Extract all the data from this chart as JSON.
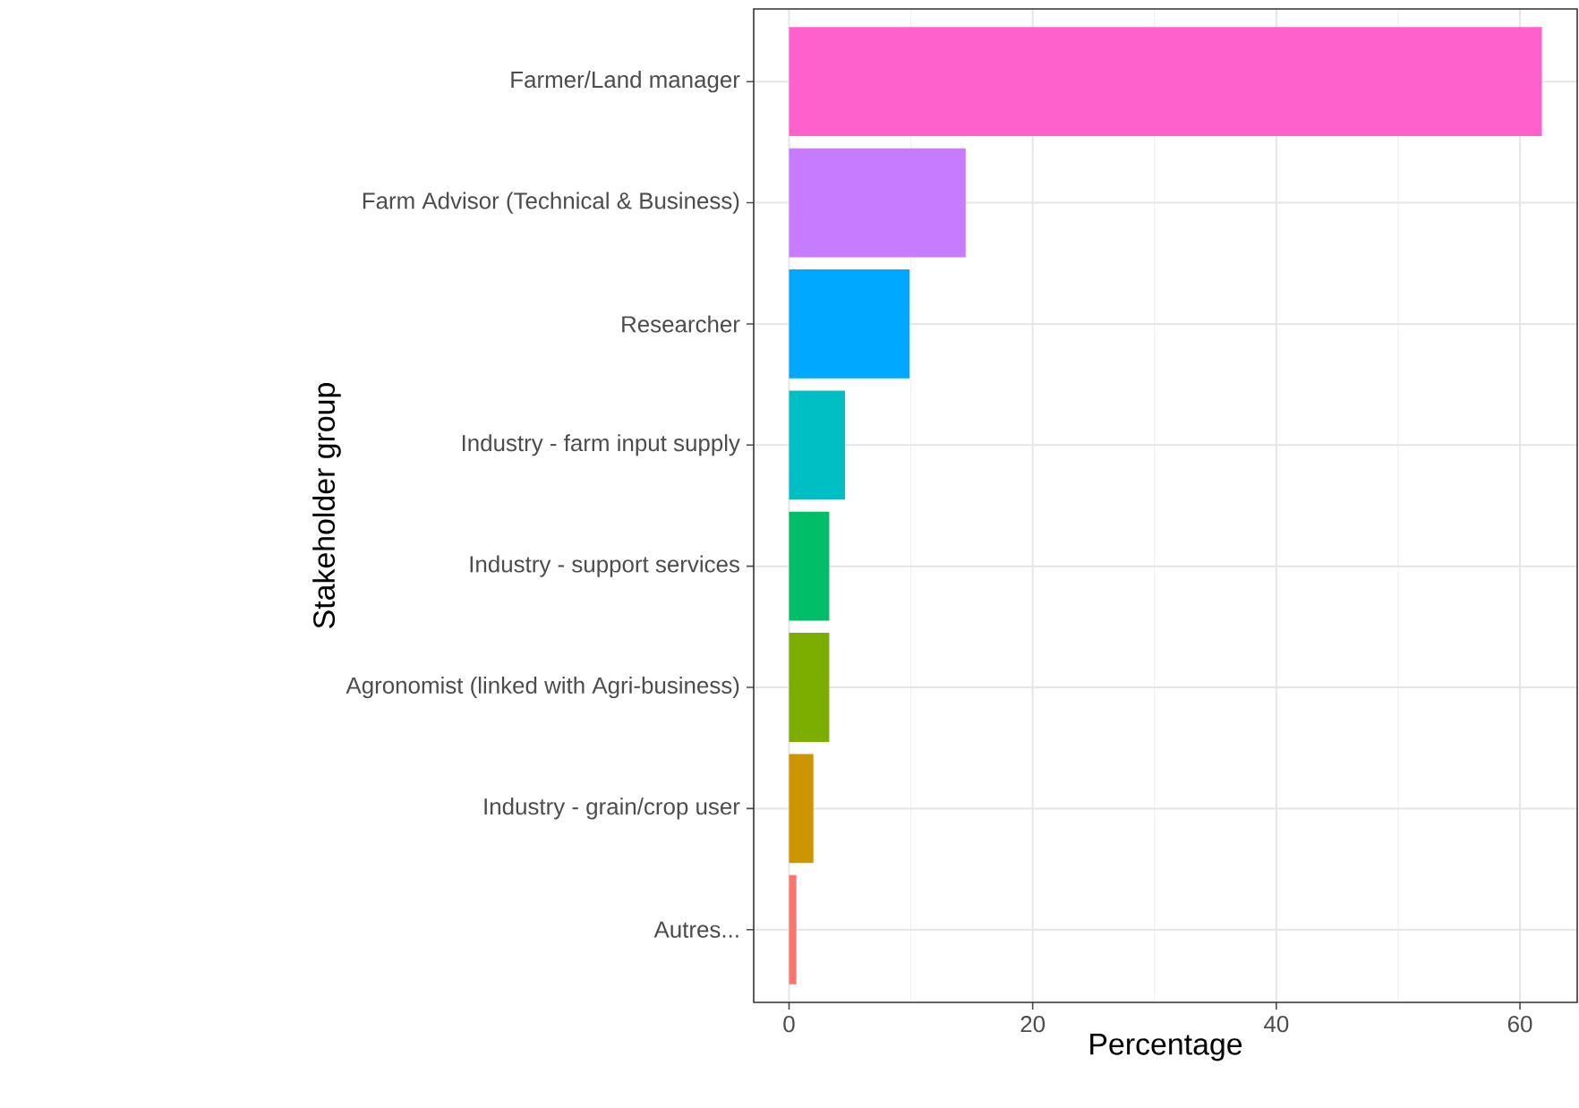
{
  "chart_data": {
    "type": "bar",
    "orientation": "horizontal",
    "xlabel": "Percentage",
    "ylabel": "Stakeholder group",
    "categories": [
      "Farmer/Land manager",
      "Farm Advisor (Technical & Business)",
      "Researcher",
      "Industry - farm input supply",
      "Industry - support services",
      "Agronomist (linked with Agri-business)",
      "Industry - grain/crop user",
      "Autres..."
    ],
    "values": [
      61.8,
      14.5,
      9.9,
      4.6,
      3.3,
      3.3,
      2.0,
      0.6
    ],
    "colors": [
      "#ff61cc",
      "#c77cff",
      "#00a9ff",
      "#00bfc4",
      "#00be67",
      "#7cae00",
      "#cd9600",
      "#f8766d"
    ],
    "xlim": [
      -2.9,
      64.7
    ],
    "xticks": [
      0,
      20,
      40,
      60
    ],
    "grid": true
  }
}
